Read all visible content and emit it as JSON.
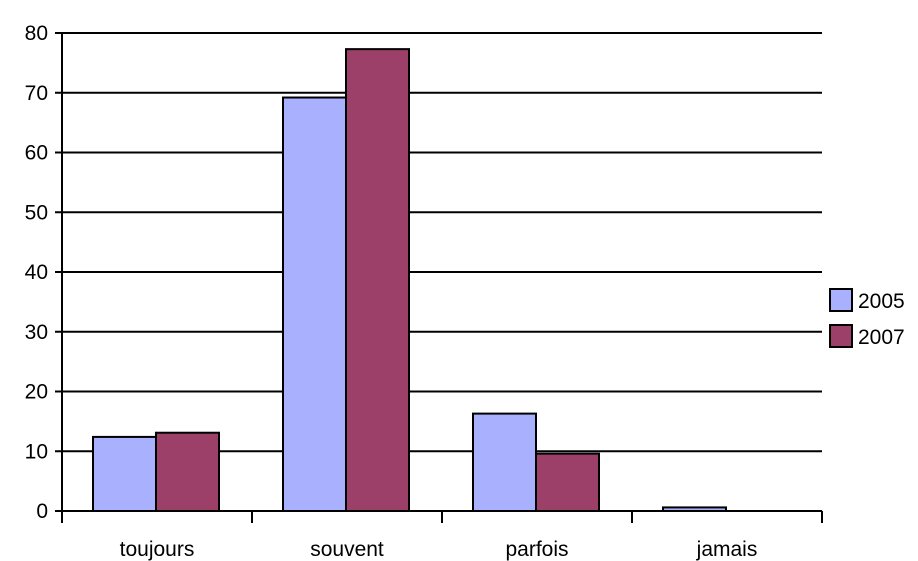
{
  "chart_data": {
    "type": "bar",
    "title": "",
    "xlabel": "",
    "ylabel": "",
    "categories": [
      "toujours",
      "souvent",
      "parfois",
      "jamais"
    ],
    "series": [
      {
        "name": "2005",
        "values": [
          12.4,
          69.2,
          16.3,
          0.6
        ],
        "color": "#a9b0fe"
      },
      {
        "name": "2007",
        "values": [
          13.1,
          77.3,
          9.6,
          0
        ],
        "color": "#9c3f69"
      }
    ],
    "ylim": [
      0,
      80
    ],
    "yticks": [
      0,
      10,
      20,
      30,
      40,
      50,
      60,
      70,
      80
    ],
    "grid": true,
    "legend_position": "right"
  }
}
